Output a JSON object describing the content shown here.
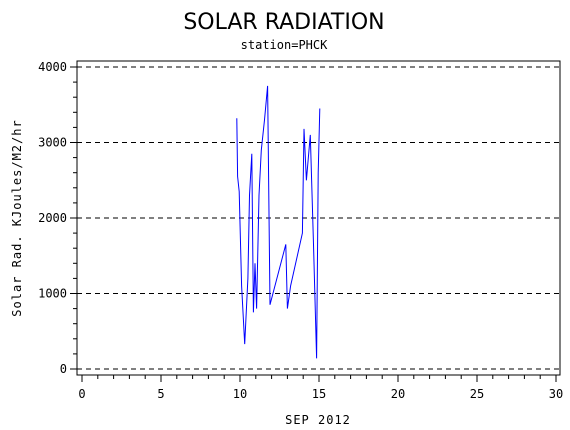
{
  "chart_data": {
    "type": "line",
    "title": "SOLAR RADIATION",
    "subtitle": "station=PHCK",
    "xlabel": "SEP 2012",
    "ylabel": "Solar Rad. KJoules/M2/hr",
    "xlim": [
      0,
      30
    ],
    "ylim": [
      0,
      4000
    ],
    "x_ticks": [
      0,
      5,
      10,
      15,
      20,
      25,
      30
    ],
    "y_ticks": [
      0,
      1000,
      2000,
      3000,
      4000
    ],
    "grid": "horizontal-dashed",
    "series": [
      {
        "color": "#0000ff",
        "x": [
          9.8,
          9.85,
          9.95,
          10.1,
          10.3,
          10.5,
          10.6,
          10.75,
          10.85,
          10.95,
          11.05,
          11.2,
          11.35,
          11.55,
          11.75,
          11.9,
          12.9,
          13.0,
          13.2,
          13.95,
          14.05,
          14.2,
          14.45,
          14.65,
          14.85,
          14.95,
          15.05
        ],
        "y": [
          3320,
          2550,
          2350,
          1100,
          330,
          1200,
          2300,
          2850,
          750,
          1400,
          800,
          2300,
          2900,
          3300,
          3750,
          850,
          1650,
          800,
          1100,
          1800,
          3180,
          2500,
          3100,
          1650,
          140,
          2600,
          3450
        ]
      }
    ]
  },
  "colors": {
    "line": "#0000ff",
    "axis": "#000000",
    "background": "#ffffff"
  }
}
